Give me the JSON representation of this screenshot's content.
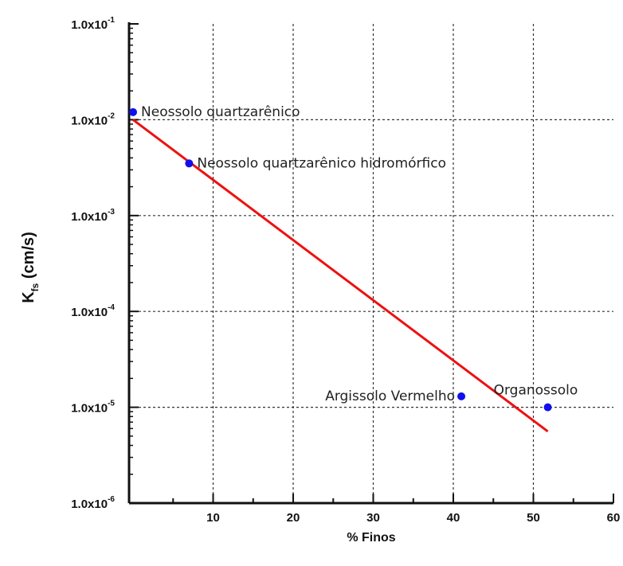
{
  "chart_data": {
    "type": "scatter",
    "title": "",
    "xlabel": "% Finos",
    "ylabel": {
      "main": "K",
      "subscript": "fs",
      "suffix": " (cm/s)"
    },
    "xlim": [
      -0.5,
      60
    ],
    "ylim": [
      1e-06,
      0.1
    ],
    "yscale": "log",
    "grid": true,
    "x_ticks": [
      10,
      20,
      30,
      40,
      50,
      60
    ],
    "x_minor_ticks": [
      5,
      15,
      25,
      35,
      45,
      55
    ],
    "y_ticks": [
      {
        "value": 1e-06,
        "mantissa": "1.0x10",
        "exponent": "-6"
      },
      {
        "value": 1e-05,
        "mantissa": "1.0x10",
        "exponent": "-5"
      },
      {
        "value": 0.0001,
        "mantissa": "1.0x10",
        "exponent": "-4"
      },
      {
        "value": 0.001,
        "mantissa": "1.0x10",
        "exponent": "-3"
      },
      {
        "value": 0.01,
        "mantissa": "1.0x10",
        "exponent": "-2"
      },
      {
        "value": 0.1,
        "mantissa": "1.0x10",
        "exponent": "-1"
      }
    ],
    "points": [
      {
        "x": 0.0,
        "y": 0.012,
        "label": "Neossolo quartzarênico",
        "label_side": "right"
      },
      {
        "x": 7.0,
        "y": 0.0035,
        "label": "Neossolo quartzarênico hidromórfico",
        "label_side": "right"
      },
      {
        "x": 41.0,
        "y": 1.3e-05,
        "label": "Argissolo Vermelho",
        "label_side": "left"
      },
      {
        "x": 51.8,
        "y": 1e-05,
        "label": "Organossolo",
        "label_side": "above"
      }
    ],
    "trend_line": {
      "x": [
        0.0,
        51.8
      ],
      "y": [
        0.01,
        5.6e-06
      ]
    },
    "colors": {
      "points": "#1010ee",
      "trend": "#ee1111",
      "grid": "#333333",
      "axis": "#111111"
    }
  }
}
